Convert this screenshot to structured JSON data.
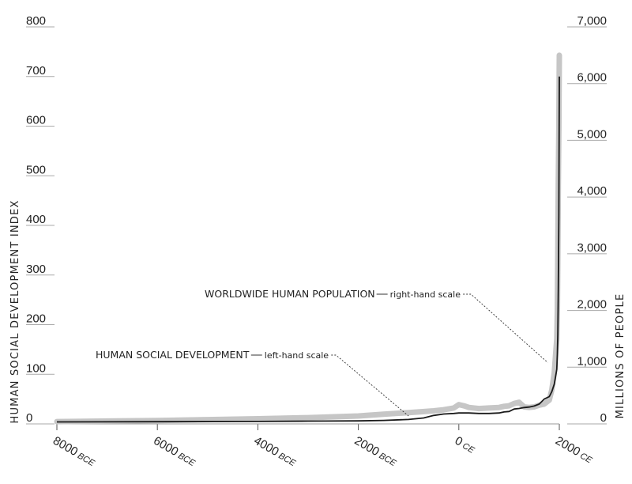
{
  "chart_data": {
    "type": "line",
    "x_ticks": [
      {
        "value": -8000,
        "label": "8000",
        "era": "BCE"
      },
      {
        "value": -6000,
        "label": "6000",
        "era": "BCE"
      },
      {
        "value": -4000,
        "label": "4000",
        "era": "BCE"
      },
      {
        "value": -2000,
        "label": "2000",
        "era": "BCE"
      },
      {
        "value": 0,
        "label": "0",
        "era": "CE"
      },
      {
        "value": 2000,
        "label": "2000",
        "era": "CE"
      }
    ],
    "xlim": [
      -8000,
      2000
    ],
    "left_axis": {
      "label": "HUMAN SOCIAL DEVELOPMENT INDEX",
      "ylim": [
        0,
        800
      ],
      "ticks": [
        {
          "value": 0,
          "label": "0"
        },
        {
          "value": 100,
          "label": "100"
        },
        {
          "value": 200,
          "label": "200"
        },
        {
          "value": 300,
          "label": "300"
        },
        {
          "value": 400,
          "label": "400"
        },
        {
          "value": 500,
          "label": "500"
        },
        {
          "value": 600,
          "label": "600"
        },
        {
          "value": 700,
          "label": "700"
        },
        {
          "value": 800,
          "label": "800"
        }
      ]
    },
    "right_axis": {
      "label": "MILLIONS OF PEOPLE",
      "ylim": [
        0,
        7000
      ],
      "ticks": [
        {
          "value": 0,
          "label": "0"
        },
        {
          "value": 1000,
          "label": "1,000"
        },
        {
          "value": 2000,
          "label": "2,000"
        },
        {
          "value": 3000,
          "label": "3,000"
        },
        {
          "value": 4000,
          "label": "4,000"
        },
        {
          "value": 5000,
          "label": "5,000"
        },
        {
          "value": 6000,
          "label": "6,000"
        },
        {
          "value": 7000,
          "label": "7,000"
        }
      ]
    },
    "series": [
      {
        "name": "WORLDWIDE HUMAN POPULATION",
        "scale_note": "right-hand scale",
        "axis": "right",
        "color": "#c6c6c6",
        "points": [
          [
            -8000,
            40
          ],
          [
            -7000,
            50
          ],
          [
            -6000,
            60
          ],
          [
            -5000,
            75
          ],
          [
            -4000,
            90
          ],
          [
            -3000,
            110
          ],
          [
            -2000,
            140
          ],
          [
            -1500,
            170
          ],
          [
            -1000,
            200
          ],
          [
            -500,
            230
          ],
          [
            -300,
            250
          ],
          [
            -100,
            280
          ],
          [
            0,
            340
          ],
          [
            100,
            320
          ],
          [
            200,
            290
          ],
          [
            400,
            270
          ],
          [
            600,
            280
          ],
          [
            800,
            290
          ],
          [
            900,
            310
          ],
          [
            1000,
            320
          ],
          [
            1100,
            360
          ],
          [
            1200,
            380
          ],
          [
            1300,
            300
          ],
          [
            1400,
            290
          ],
          [
            1500,
            300
          ],
          [
            1600,
            330
          ],
          [
            1700,
            350
          ],
          [
            1800,
            420
          ],
          [
            1850,
            600
          ],
          [
            1900,
            900
          ],
          [
            1950,
            1500
          ],
          [
            1960,
            2000
          ],
          [
            1970,
            3000
          ],
          [
            1980,
            4200
          ],
          [
            1990,
            5200
          ],
          [
            2000,
            6500
          ]
        ]
      },
      {
        "name": "HUMAN SOCIAL DEVELOPMENT",
        "scale_note": "left-hand scale",
        "axis": "left",
        "color": "#1a1a1a",
        "points": [
          [
            -8000,
            4
          ],
          [
            -6000,
            4.5
          ],
          [
            -4000,
            5
          ],
          [
            -3000,
            5.5
          ],
          [
            -2000,
            6
          ],
          [
            -1500,
            7
          ],
          [
            -1000,
            9
          ],
          [
            -700,
            12
          ],
          [
            -500,
            17
          ],
          [
            -300,
            20
          ],
          [
            -100,
            21
          ],
          [
            0,
            22
          ],
          [
            200,
            22
          ],
          [
            400,
            21
          ],
          [
            600,
            21
          ],
          [
            800,
            22
          ],
          [
            900,
            24
          ],
          [
            1000,
            25
          ],
          [
            1100,
            30
          ],
          [
            1200,
            31
          ],
          [
            1300,
            33
          ],
          [
            1400,
            34
          ],
          [
            1500,
            36
          ],
          [
            1600,
            40
          ],
          [
            1700,
            50
          ],
          [
            1800,
            55
          ],
          [
            1850,
            65
          ],
          [
            1900,
            80
          ],
          [
            1950,
            110
          ],
          [
            1960,
            140
          ],
          [
            1970,
            180
          ],
          [
            1980,
            270
          ],
          [
            1990,
            420
          ],
          [
            2000,
            700
          ]
        ]
      }
    ],
    "annotations": [
      {
        "id": "pop",
        "main": "WORLDWIDE HUMAN POPULATION",
        "sub": "right-hand scale",
        "target": [
          1770,
          1080
        ],
        "target_axis": "right"
      },
      {
        "id": "hsd",
        "main": "HUMAN SOCIAL DEVELOPMENT",
        "sub": "left-hand scale",
        "target": [
          -1000,
          16
        ],
        "target_axis": "left"
      }
    ]
  }
}
